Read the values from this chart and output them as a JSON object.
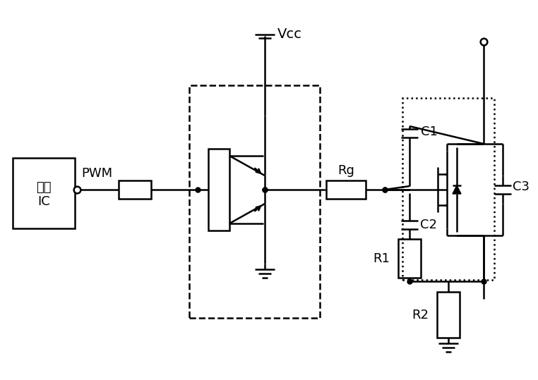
{
  "bg": "#ffffff",
  "lc": "#000000",
  "lw": 1.8,
  "fs": 13,
  "labels": {
    "ic1": "电源",
    "ic2": "IC",
    "pwm": "PWM",
    "vcc": "Vcc",
    "rg": "Rg",
    "r1": "R1",
    "r2": "R2",
    "c1": "C1",
    "c2": "C2",
    "c3": "C3"
  }
}
